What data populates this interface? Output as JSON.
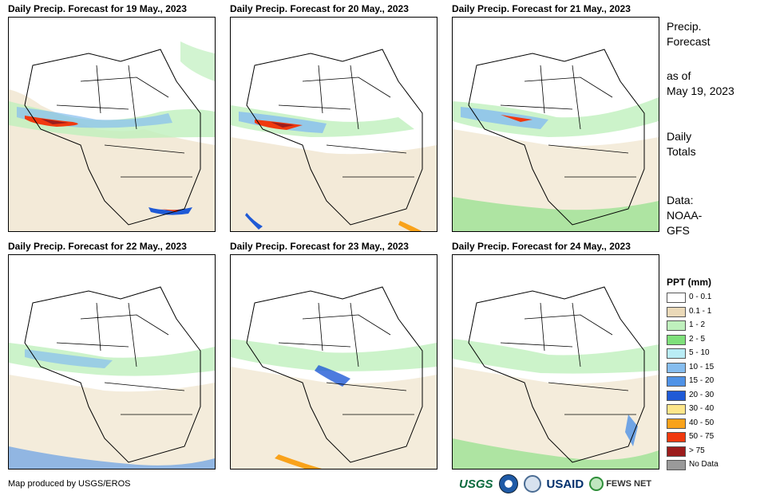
{
  "panels": [
    {
      "title": "Daily Precip. Forecast for 19 May., 2023"
    },
    {
      "title": "Daily Precip. Forecast for 20 May., 2023"
    },
    {
      "title": "Daily Precip. Forecast for 21 May., 2023"
    },
    {
      "title": "Daily Precip. Forecast for 22 May., 2023"
    },
    {
      "title": "Daily Precip. Forecast for 23 May., 2023"
    },
    {
      "title": "Daily Precip. Forecast for 24 May., 2023"
    }
  ],
  "sidebar": {
    "title_line1": "Precip.",
    "title_line2": "Forecast",
    "asof_line1": "as of",
    "asof_line2": "May 19, 2023",
    "daily_line1": "Daily",
    "daily_line2": "Totals",
    "data_line1": "Data:",
    "data_line2": "NOAA-",
    "data_line3": "GFS"
  },
  "legend": {
    "title": "PPT (mm)",
    "items": [
      {
        "label": "0 - 0.1",
        "color": "#ffffff"
      },
      {
        "label": "0.1 - 1",
        "color": "#ead9b8"
      },
      {
        "label": "1 - 2",
        "color": "#bff0bd"
      },
      {
        "label": "2 - 5",
        "color": "#7fe07b"
      },
      {
        "label": "5 - 10",
        "color": "#b9ecf5"
      },
      {
        "label": "10 - 15",
        "color": "#86bdef"
      },
      {
        "label": "15 - 20",
        "color": "#4f92e6"
      },
      {
        "label": "20 - 30",
        "color": "#1f5ad6"
      },
      {
        "label": "30 - 40",
        "color": "#fde68a"
      },
      {
        "label": "40 - 50",
        "color": "#f9a21a"
      },
      {
        "label": "50 - 75",
        "color": "#f0390f"
      },
      {
        "label": "> 75",
        "color": "#9c1c1c"
      },
      {
        "label": "No Data",
        "color": "#9a9a9a"
      }
    ]
  },
  "footer": {
    "credit": "Map produced by USGS/EROS"
  },
  "logos": {
    "usgs": "USGS",
    "usaid": "USAID",
    "fews": "FEWS NET"
  }
}
